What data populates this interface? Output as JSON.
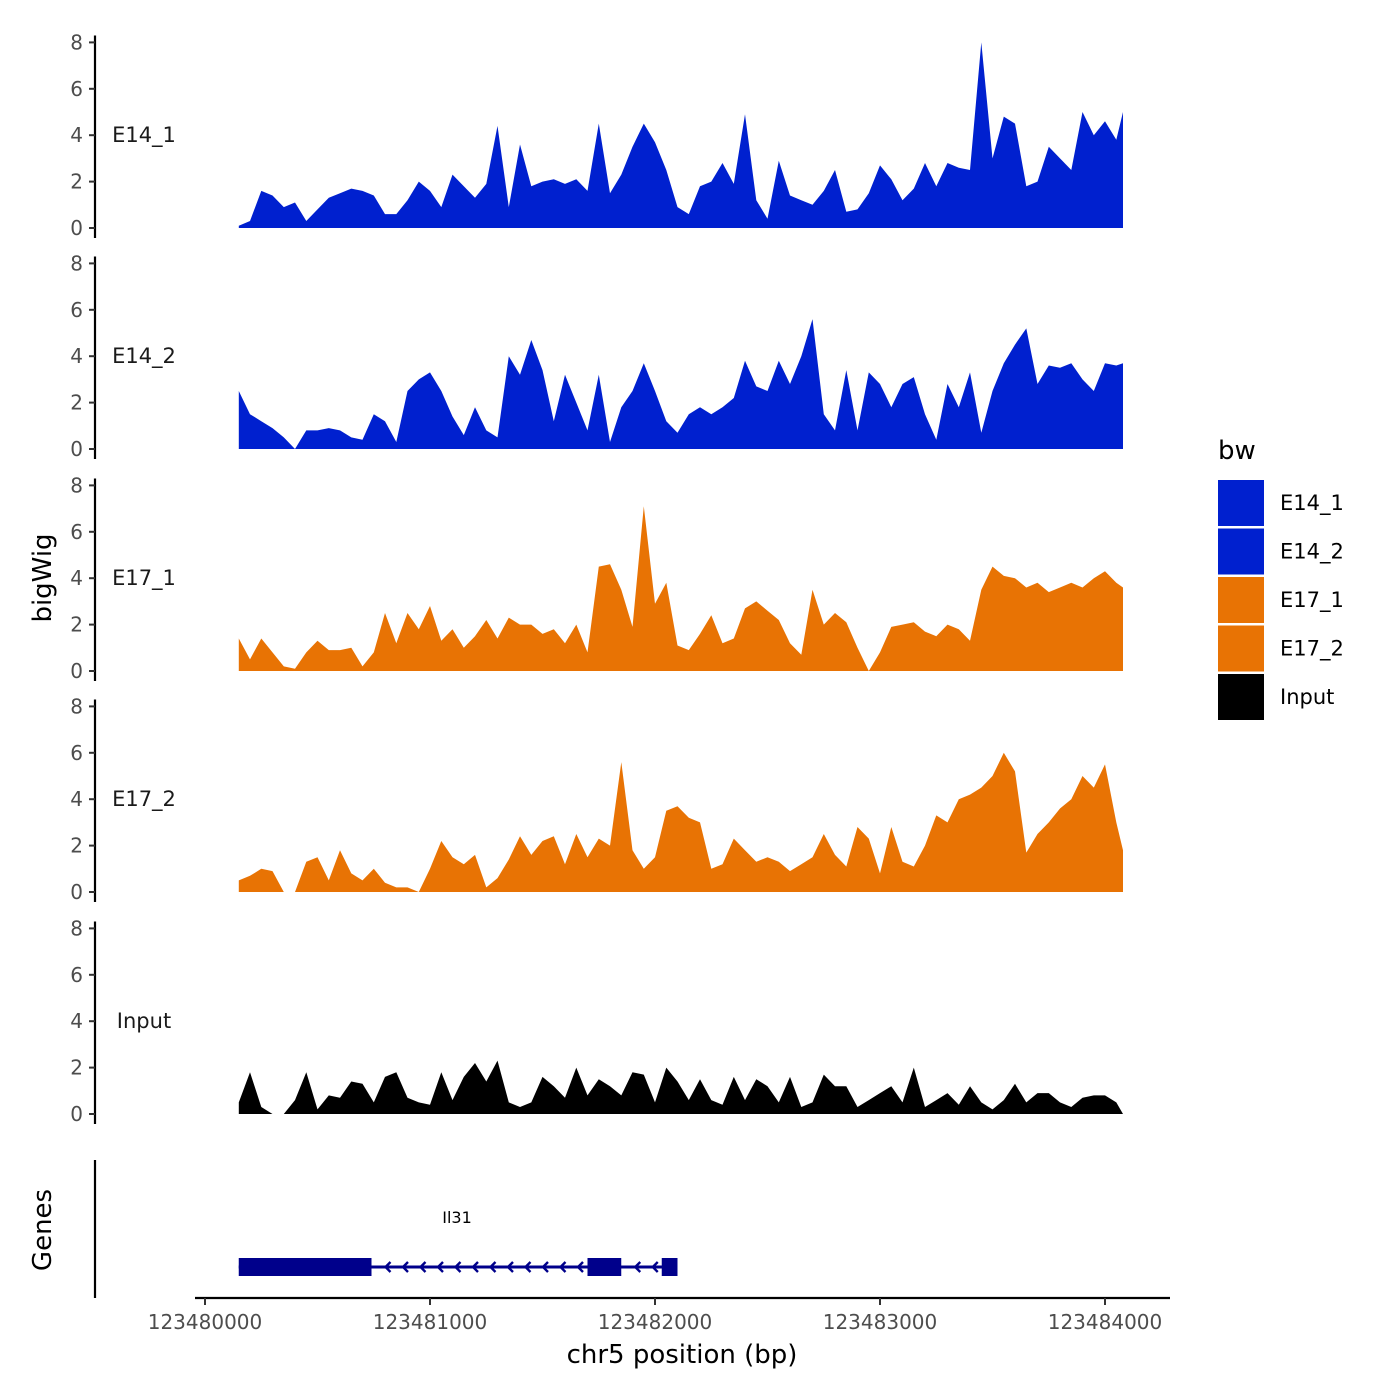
{
  "chart_data": {
    "type": "area",
    "xlabel": "chr5 position (bp)",
    "ylabel": "bigWig",
    "genes_label": "Genes",
    "xlim": [
      123479950,
      123484300
    ],
    "ylim": [
      0,
      8.3
    ],
    "x_ticks": [
      123480000,
      123481000,
      123482000,
      123483000,
      123484000
    ],
    "y_ticks": [
      0,
      2,
      4,
      6,
      8
    ],
    "legend": {
      "title": "bw",
      "position": "right",
      "entries": [
        {
          "label": "E14_1",
          "color": "#0020CF"
        },
        {
          "label": "E14_2",
          "color": "#0020CF"
        },
        {
          "label": "E17_1",
          "color": "#E87304"
        },
        {
          "label": "E17_2",
          "color": "#E87304"
        },
        {
          "label": "Input",
          "color": "#000000"
        }
      ]
    },
    "x": [
      123480150,
      123480200,
      123480250,
      123480300,
      123480350,
      123480400,
      123480450,
      123480500,
      123480550,
      123480600,
      123480650,
      123480700,
      123480750,
      123480800,
      123480850,
      123480900,
      123480950,
      123481000,
      123481050,
      123481100,
      123481150,
      123481200,
      123481250,
      123481300,
      123481350,
      123481400,
      123481450,
      123481500,
      123481550,
      123481600,
      123481650,
      123481700,
      123481750,
      123481800,
      123481850,
      123481900,
      123481950,
      123482000,
      123482050,
      123482100,
      123482150,
      123482200,
      123482250,
      123482300,
      123482350,
      123482400,
      123482450,
      123482500,
      123482550,
      123482600,
      123482650,
      123482700,
      123482750,
      123482800,
      123482850,
      123482900,
      123482950,
      123483000,
      123483050,
      123483100,
      123483150,
      123483200,
      123483250,
      123483300,
      123483350,
      123483400,
      123483450,
      123483500,
      123483550,
      123483600,
      123483650,
      123483700,
      123483750,
      123483800,
      123483850,
      123483900,
      123483950,
      123484000,
      123484050,
      123484080
    ],
    "series": [
      {
        "name": "E14_1",
        "color": "#0020CF",
        "values": [
          0.1,
          0.3,
          1.6,
          1.4,
          0.9,
          1.1,
          0.3,
          0.8,
          1.3,
          1.5,
          1.7,
          1.6,
          1.4,
          0.6,
          0.6,
          1.2,
          2.0,
          1.6,
          0.9,
          2.3,
          1.8,
          1.3,
          1.9,
          4.4,
          0.9,
          3.6,
          1.8,
          2.0,
          2.1,
          1.9,
          2.1,
          1.6,
          4.5,
          1.5,
          2.3,
          3.5,
          4.5,
          3.7,
          2.5,
          0.9,
          0.6,
          1.8,
          2.0,
          2.8,
          1.9,
          4.9,
          1.2,
          0.4,
          2.9,
          1.4,
          1.2,
          1.0,
          1.6,
          2.5,
          0.7,
          0.8,
          1.5,
          2.7,
          2.1,
          1.2,
          1.7,
          2.8,
          1.8,
          2.8,
          2.6,
          2.5,
          8.0,
          3.0,
          4.8,
          4.5,
          1.8,
          2.0,
          3.5,
          3.0,
          2.5,
          5.0,
          4.0,
          4.6,
          3.8,
          5.0
        ]
      },
      {
        "name": "E14_2",
        "color": "#0020CF",
        "values": [
          2.5,
          1.5,
          1.2,
          0.9,
          0.5,
          0.0,
          0.8,
          0.8,
          0.9,
          0.8,
          0.5,
          0.4,
          1.5,
          1.2,
          0.3,
          2.5,
          3.0,
          3.3,
          2.5,
          1.4,
          0.6,
          1.8,
          0.8,
          0.5,
          4.0,
          3.2,
          4.7,
          3.4,
          1.2,
          3.2,
          2.0,
          0.8,
          3.2,
          0.3,
          1.8,
          2.5,
          3.7,
          2.5,
          1.2,
          0.7,
          1.5,
          1.8,
          1.5,
          1.8,
          2.2,
          3.8,
          2.7,
          2.5,
          3.8,
          2.8,
          4.0,
          5.6,
          1.5,
          0.8,
          3.4,
          0.8,
          3.3,
          2.8,
          1.8,
          2.8,
          3.1,
          1.5,
          0.4,
          2.8,
          1.8,
          3.3,
          0.7,
          2.5,
          3.7,
          4.5,
          5.2,
          2.8,
          3.6,
          3.5,
          3.7,
          3.0,
          2.5,
          3.7,
          3.6,
          3.7
        ]
      },
      {
        "name": "E17_1",
        "color": "#E87304",
        "values": [
          1.4,
          0.5,
          1.4,
          0.8,
          0.2,
          0.1,
          0.8,
          1.3,
          0.9,
          0.9,
          1.0,
          0.2,
          0.8,
          2.5,
          1.2,
          2.5,
          1.8,
          2.8,
          1.3,
          1.8,
          1.0,
          1.5,
          2.2,
          1.4,
          2.3,
          2.0,
          2.0,
          1.6,
          1.8,
          1.2,
          2.0,
          0.8,
          4.5,
          4.6,
          3.5,
          1.9,
          7.1,
          2.9,
          3.8,
          1.1,
          0.9,
          1.6,
          2.4,
          1.2,
          1.4,
          2.7,
          3.0,
          2.6,
          2.2,
          1.2,
          0.7,
          3.5,
          2.0,
          2.5,
          2.1,
          1.0,
          0.0,
          0.8,
          1.9,
          2.0,
          2.1,
          1.7,
          1.5,
          2.0,
          1.8,
          1.3,
          3.5,
          4.5,
          4.1,
          4.0,
          3.6,
          3.8,
          3.4,
          3.6,
          3.8,
          3.6,
          4.0,
          4.3,
          3.8,
          3.6
        ]
      },
      {
        "name": "E17_2",
        "color": "#E87304",
        "values": [
          0.5,
          0.7,
          1.0,
          0.9,
          0.0,
          0.0,
          1.3,
          1.5,
          0.5,
          1.8,
          0.8,
          0.5,
          1.0,
          0.4,
          0.2,
          0.2,
          0.0,
          1.0,
          2.2,
          1.5,
          1.2,
          1.6,
          0.2,
          0.6,
          1.4,
          2.4,
          1.6,
          2.2,
          2.4,
          1.2,
          2.5,
          1.5,
          2.3,
          2.0,
          5.6,
          1.8,
          1.0,
          1.5,
          3.5,
          3.7,
          3.2,
          3.0,
          1.0,
          1.2,
          2.3,
          1.8,
          1.3,
          1.5,
          1.3,
          0.9,
          1.2,
          1.5,
          2.5,
          1.6,
          1.1,
          2.8,
          2.3,
          0.8,
          2.8,
          1.3,
          1.1,
          2.0,
          3.3,
          3.0,
          4.0,
          4.2,
          4.5,
          5.0,
          6.0,
          5.2,
          1.7,
          2.5,
          3.0,
          3.6,
          4.0,
          5.0,
          4.5,
          5.5,
          3.0,
          1.8
        ]
      },
      {
        "name": "Input",
        "color": "#000000",
        "values": [
          0.5,
          1.8,
          0.3,
          0.0,
          0.0,
          0.6,
          1.8,
          0.2,
          0.8,
          0.7,
          1.4,
          1.3,
          0.5,
          1.6,
          1.8,
          0.7,
          0.5,
          0.4,
          1.8,
          0.6,
          1.6,
          2.2,
          1.4,
          2.3,
          0.5,
          0.3,
          0.5,
          1.6,
          1.2,
          0.7,
          2.0,
          0.8,
          1.5,
          1.2,
          0.8,
          1.8,
          1.7,
          0.5,
          2.0,
          1.4,
          0.6,
          1.5,
          0.6,
          0.4,
          1.6,
          0.6,
          1.5,
          1.2,
          0.5,
          1.6,
          0.3,
          0.5,
          1.7,
          1.2,
          1.2,
          0.3,
          0.6,
          0.9,
          1.2,
          0.5,
          2.0,
          0.3,
          0.6,
          0.9,
          0.4,
          1.2,
          0.5,
          0.2,
          0.6,
          1.3,
          0.5,
          0.9,
          0.9,
          0.5,
          0.3,
          0.7,
          0.8,
          0.8,
          0.5,
          0.0
        ]
      }
    ],
    "gene": {
      "name": "Il31",
      "start": 123480150,
      "end": 123482100,
      "strand": "-",
      "exons": [
        [
          123480150,
          123480740
        ],
        [
          123481700,
          123481850
        ],
        [
          123482030,
          123482100
        ]
      ]
    }
  }
}
